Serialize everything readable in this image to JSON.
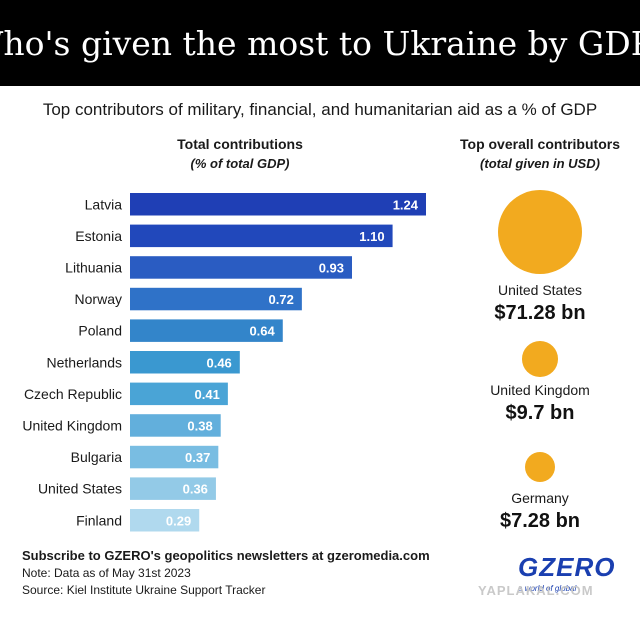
{
  "header": {
    "title": "Who's given the most to Ukraine by GDP?"
  },
  "subtitle": "Top contributors of military, financial, and humanitarian aid as a % of GDP",
  "left_column": {
    "heading": "Total contributions",
    "subheading": "(% of total GDP)"
  },
  "right_column": {
    "heading": "Top overall contributors",
    "subheading": "(total given in USD)",
    "items": [
      {
        "name": "United States",
        "amount": "$71.28 bn",
        "value": 71.28
      },
      {
        "name": "United Kingdom",
        "amount": "$9.7 bn",
        "value": 9.7
      },
      {
        "name": "Germany",
        "amount": "$7.28 bn",
        "value": 7.28
      }
    ]
  },
  "chart_data": {
    "type": "bar",
    "orientation": "horizontal",
    "categories": [
      "Latvia",
      "Estonia",
      "Lithuania",
      "Norway",
      "Poland",
      "Netherlands",
      "Czech Republic",
      "United Kingdom",
      "Bulgaria",
      "United States",
      "Finland"
    ],
    "values": [
      1.24,
      1.1,
      0.93,
      0.72,
      0.64,
      0.46,
      0.41,
      0.38,
      0.37,
      0.36,
      0.29
    ],
    "labels": [
      "1.24",
      "1.10",
      "0.93",
      "0.72",
      "0.64",
      "0.46",
      "0.41",
      "0.38",
      "0.37",
      "0.36",
      "0.29"
    ],
    "colors": [
      "#1f3fb5",
      "#2148bb",
      "#2a5cc2",
      "#2f72c8",
      "#3385ca",
      "#3a98d0",
      "#4aa4d6",
      "#62afdc",
      "#79bde2",
      "#93cae7",
      "#b0d9ee"
    ],
    "title": "Total contributions",
    "subtitle": "(% of total GDP)",
    "grid": false,
    "legend": "none"
  },
  "footer": {
    "subscribe": "Subscribe to GZERO's geopolitics newsletters at gzeromedia.com",
    "note": "Note: Data as of May 31st 2023",
    "source": "Source: Kiel Institute Ukraine Support Tracker"
  },
  "logo": {
    "text": "GZERO",
    "tagline": "a world of global",
    "color": "#1a3fb0"
  },
  "watermark": "YAPLAKAL.COM",
  "colors": {
    "accent": "#f2aa1f",
    "header_bg": "#000000"
  }
}
